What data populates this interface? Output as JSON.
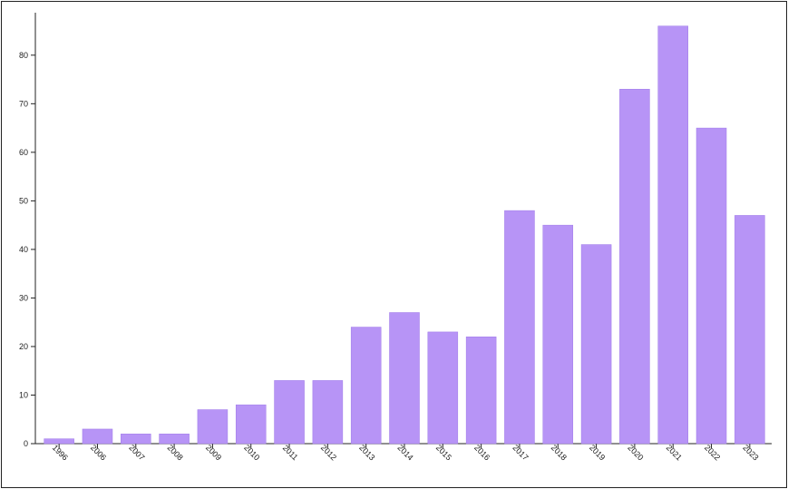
{
  "chart_data": {
    "type": "bar",
    "title": "",
    "xlabel": "",
    "ylabel": "",
    "categories": [
      "1996",
      "2006",
      "2007",
      "2008",
      "2009",
      "2010",
      "2011",
      "2012",
      "2013",
      "2014",
      "2015",
      "2016",
      "2017",
      "2018",
      "2019",
      "2020",
      "2021",
      "2022",
      "2023"
    ],
    "values": [
      1,
      3,
      2,
      2,
      7,
      8,
      13,
      13,
      24,
      27,
      23,
      22,
      48,
      45,
      41,
      73,
      86,
      65,
      47
    ],
    "ylim": [
      0,
      88
    ],
    "yticks": [
      0,
      10,
      20,
      30,
      40,
      50,
      60,
      70,
      80
    ],
    "bar_color": "#b794f6",
    "bar_border_color": "#9f7ae8",
    "axis_color": "#222222",
    "grid": false,
    "legend": "none"
  }
}
